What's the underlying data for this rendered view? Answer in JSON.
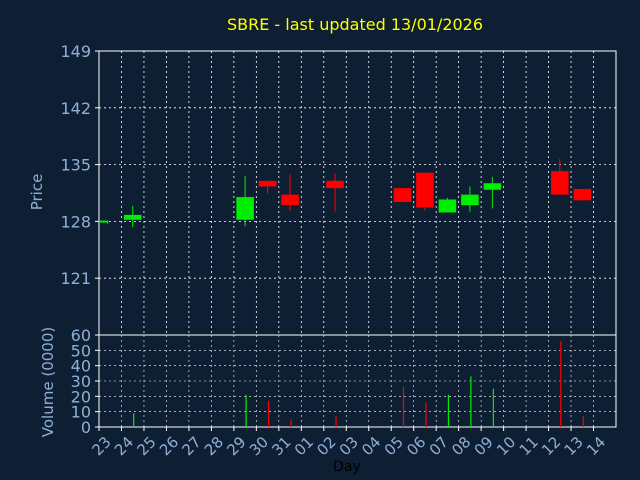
{
  "chart_data": {
    "type": "candlestick",
    "title": "SBRE - last updated 13/01/2026",
    "categories": [
      "23",
      "24",
      "25",
      "26",
      "27",
      "28",
      "29",
      "30",
      "31",
      "01",
      "02",
      "03",
      "04",
      "05",
      "06",
      "07",
      "08",
      "09",
      "10",
      "11",
      "12",
      "13",
      "14"
    ],
    "xlabel": "Day",
    "price_panel": {
      "ylabel": "Price",
      "ylim": [
        114,
        149
      ],
      "yticks": [
        "121",
        "128",
        "135",
        "142",
        "149"
      ],
      "candles": [
        {
          "day": "23",
          "open": 127.9,
          "high": 128.1,
          "low": 127.7,
          "close": 128.1
        },
        {
          "day": "24",
          "open": 128.2,
          "high": 129.9,
          "low": 127.3,
          "close": 128.8
        },
        {
          "day": "29",
          "open": 128.2,
          "high": 133.6,
          "low": 127.4,
          "close": 131.0
        },
        {
          "day": "30",
          "open": 133.0,
          "high": 133.0,
          "low": 131.4,
          "close": 132.3
        },
        {
          "day": "31",
          "open": 131.3,
          "high": 133.8,
          "low": 129.3,
          "close": 130.0
        },
        {
          "day": "02",
          "open": 133.0,
          "high": 133.9,
          "low": 129.2,
          "close": 132.1
        },
        {
          "day": "05",
          "open": 132.1,
          "high": 132.1,
          "low": 130.4,
          "close": 130.4
        },
        {
          "day": "06",
          "open": 134.0,
          "high": 134.0,
          "low": 129.3,
          "close": 129.7
        },
        {
          "day": "07",
          "open": 129.1,
          "high": 130.9,
          "low": 129.1,
          "close": 130.7
        },
        {
          "day": "08",
          "open": 130.0,
          "high": 132.3,
          "low": 129.2,
          "close": 131.3
        },
        {
          "day": "09",
          "open": 131.9,
          "high": 133.5,
          "low": 129.6,
          "close": 132.7
        },
        {
          "day": "12",
          "open": 134.2,
          "high": 135.7,
          "low": 131.3,
          "close": 131.3
        },
        {
          "day": "13",
          "open": 132.0,
          "high": 132.0,
          "low": 130.6,
          "close": 130.6
        }
      ]
    },
    "volume_panel": {
      "ylabel": "Volume (0000)",
      "ylim": [
        0,
        60
      ],
      "yticks": [
        "0",
        "10",
        "20",
        "30",
        "40",
        "50",
        "60"
      ],
      "bars": [
        {
          "day": "24",
          "value": 9,
          "direction": "up"
        },
        {
          "day": "29",
          "value": 21,
          "direction": "up"
        },
        {
          "day": "30",
          "value": 17,
          "direction": "down"
        },
        {
          "day": "31",
          "value": 5,
          "direction": "down"
        },
        {
          "day": "02",
          "value": 7,
          "direction": "down"
        },
        {
          "day": "05",
          "value": 26,
          "direction": "down"
        },
        {
          "day": "06",
          "value": 16,
          "direction": "down"
        },
        {
          "day": "07",
          "value": 21,
          "direction": "up"
        },
        {
          "day": "08",
          "value": 33,
          "direction": "up"
        },
        {
          "day": "09",
          "value": 25,
          "direction": "up"
        },
        {
          "day": "12",
          "value": 56,
          "direction": "down"
        },
        {
          "day": "13",
          "value": 7,
          "direction": "down"
        }
      ]
    },
    "grid": true,
    "colors": {
      "background": "#0f1f33",
      "up": "#00ee00",
      "down": "#ff0000",
      "grid": "#ffffff",
      "axis_text": "#8fb0d6",
      "title": "#ffff00"
    }
  }
}
